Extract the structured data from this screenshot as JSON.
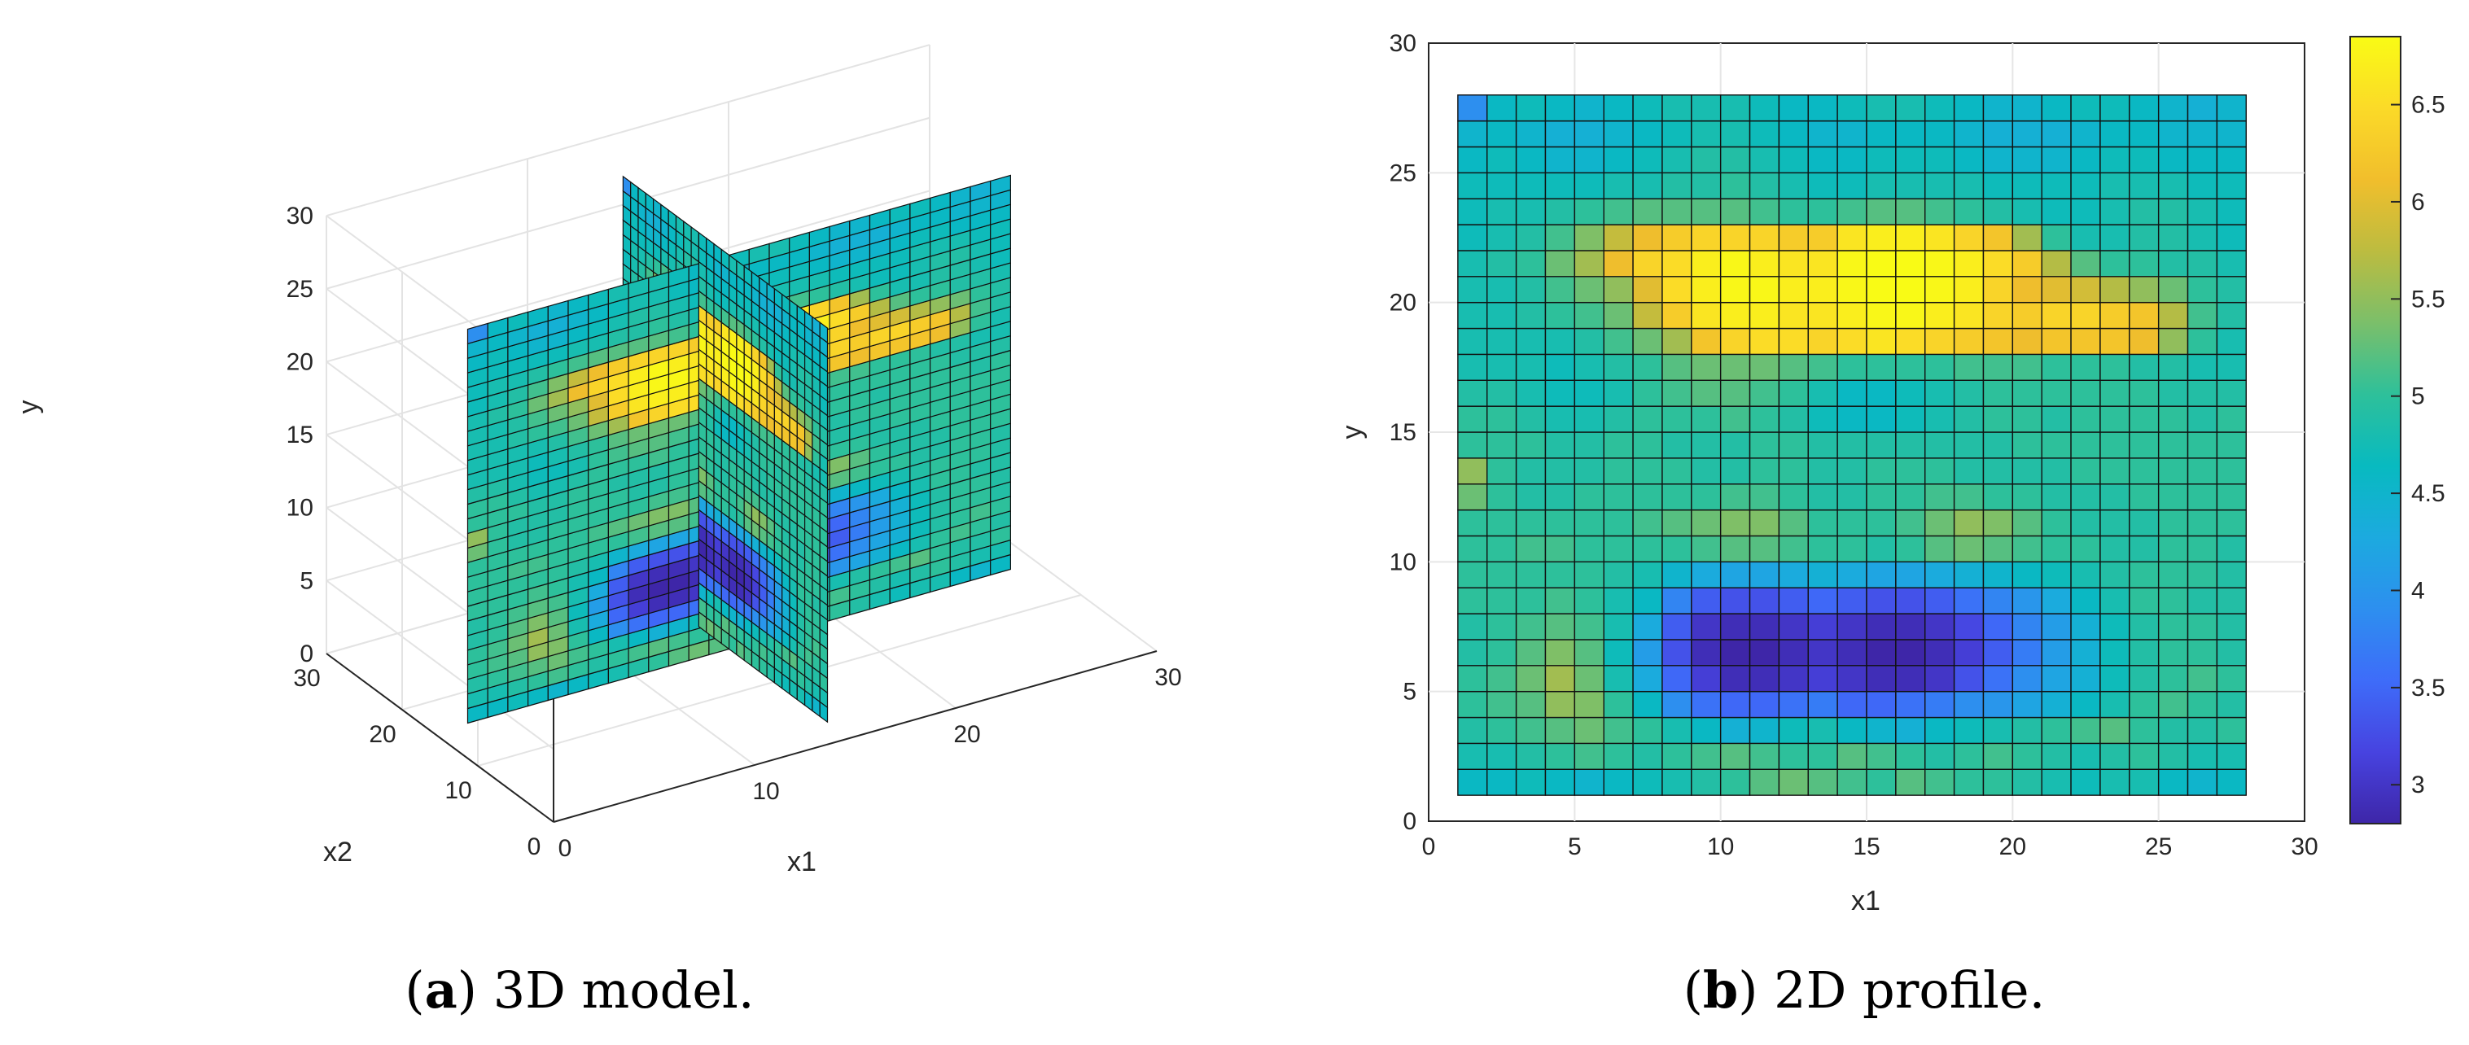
{
  "chart_data": [
    {
      "type": "3d-slice",
      "caption": {
        "label": "a",
        "text": "3D model."
      },
      "xlabel": "x1",
      "ylabel": "x2",
      "zlabel": "y",
      "xlim": [
        0,
        30
      ],
      "ylim": [
        0,
        30
      ],
      "zlim": [
        0,
        30
      ],
      "x_ticks": [
        "0",
        "10",
        "20",
        "30"
      ],
      "y_ticks": [
        "0",
        "10",
        "20",
        "30"
      ],
      "z_ticks": [
        "0",
        "5",
        "10",
        "15",
        "20",
        "25",
        "30"
      ],
      "slices": [
        {
          "plane": "x1 = 14",
          "range": [
            1,
            28
          ]
        },
        {
          "plane": "x2 = 14",
          "range": [
            1,
            28
          ]
        }
      ],
      "description_values": "Each slice shows a high-value band (~6.5) at y 19-24 and a low-value band (~3) at y 5-9 over a background of ~5."
    },
    {
      "type": "heatmap",
      "caption": {
        "label": "b",
        "text": "2D profile."
      },
      "xlabel": "x1",
      "ylabel": "y",
      "xlim": [
        0,
        30
      ],
      "ylim": [
        0,
        30
      ],
      "x_ticks": [
        "0",
        "5",
        "10",
        "15",
        "20",
        "25",
        "30"
      ],
      "y_ticks": [
        "0",
        "5",
        "10",
        "15",
        "20",
        "25",
        "30"
      ],
      "colorbar": {
        "min": 2.8,
        "max": 6.85,
        "ticks": [
          "3",
          "3.5",
          "4",
          "4.5",
          "5",
          "5.5",
          "6",
          "6.5"
        ]
      },
      "grid_x_start": 1,
      "grid_y_start": 1,
      "grid_size": 27,
      "values": [
        [
          4.6,
          4.6,
          4.7,
          4.6,
          4.5,
          4.6,
          4.7,
          4.8,
          4.9,
          5.0,
          5.2,
          5.3,
          5.2,
          5.1,
          5.0,
          5.2,
          5.1,
          5.0,
          5.0,
          4.9,
          4.8,
          4.7,
          4.8,
          4.8,
          4.6,
          4.5,
          4.6
        ],
        [
          4.8,
          4.8,
          4.9,
          5.0,
          5.1,
          5.0,
          4.9,
          5.0,
          5.1,
          5.2,
          5.1,
          5.0,
          5.0,
          5.2,
          5.1,
          5.0,
          4.9,
          5.0,
          5.1,
          5.0,
          4.9,
          4.8,
          4.9,
          5.0,
          4.9,
          4.8,
          4.8
        ],
        [
          4.9,
          5.0,
          5.1,
          5.2,
          5.3,
          5.1,
          5.0,
          4.8,
          4.6,
          4.4,
          4.5,
          4.7,
          4.8,
          4.6,
          4.5,
          4.4,
          4.6,
          4.7,
          4.8,
          4.9,
          5.0,
          5.1,
          5.2,
          5.0,
          4.9,
          4.9,
          5.0
        ],
        [
          5.0,
          5.1,
          5.2,
          5.5,
          5.4,
          5.0,
          4.6,
          3.9,
          3.6,
          3.5,
          3.5,
          3.6,
          3.7,
          3.5,
          3.5,
          3.6,
          3.7,
          3.9,
          4.0,
          4.2,
          4.4,
          4.6,
          4.8,
          5.0,
          5.1,
          5.0,
          4.9
        ],
        [
          5.0,
          5.1,
          5.3,
          5.6,
          5.3,
          4.8,
          4.3,
          3.5,
          3.1,
          2.9,
          2.9,
          3.0,
          3.1,
          3.0,
          2.9,
          2.9,
          3.0,
          3.3,
          3.6,
          3.9,
          4.2,
          4.4,
          4.7,
          4.9,
          5.0,
          5.1,
          5.0
        ],
        [
          4.9,
          5.0,
          5.2,
          5.4,
          5.2,
          4.7,
          4.1,
          3.3,
          2.9,
          2.8,
          2.8,
          2.9,
          3.0,
          2.9,
          2.8,
          2.8,
          2.9,
          3.1,
          3.4,
          3.7,
          4.1,
          4.4,
          4.7,
          4.9,
          5.0,
          5.0,
          4.9
        ],
        [
          4.9,
          5.0,
          5.1,
          5.2,
          5.1,
          4.8,
          4.3,
          3.4,
          3.0,
          2.9,
          2.9,
          3.0,
          3.1,
          3.0,
          2.9,
          2.9,
          3.0,
          3.2,
          3.5,
          3.8,
          4.1,
          4.4,
          4.7,
          4.9,
          5.0,
          5.0,
          4.9
        ],
        [
          5.0,
          5.0,
          5.0,
          5.1,
          5.0,
          4.8,
          4.6,
          3.8,
          3.4,
          3.3,
          3.3,
          3.4,
          3.5,
          3.4,
          3.3,
          3.3,
          3.4,
          3.6,
          3.8,
          4.0,
          4.3,
          4.6,
          4.8,
          5.0,
          5.0,
          4.9,
          4.9
        ],
        [
          5.0,
          5.0,
          5.0,
          5.0,
          5.0,
          4.9,
          4.8,
          4.5,
          4.3,
          4.2,
          4.2,
          4.3,
          4.4,
          4.3,
          4.2,
          4.2,
          4.3,
          4.4,
          4.5,
          4.6,
          4.7,
          4.8,
          4.9,
          5.0,
          5.0,
          5.0,
          4.9
        ],
        [
          5.0,
          5.0,
          5.1,
          5.1,
          5.0,
          5.0,
          5.0,
          5.0,
          5.1,
          5.2,
          5.2,
          5.1,
          5.0,
          5.0,
          4.9,
          5.0,
          5.2,
          5.3,
          5.2,
          5.1,
          5.0,
          5.0,
          4.9,
          4.9,
          5.0,
          5.0,
          4.9
        ],
        [
          5.0,
          5.0,
          5.0,
          5.0,
          5.0,
          5.0,
          5.1,
          5.2,
          5.3,
          5.4,
          5.4,
          5.2,
          5.0,
          5.0,
          5.0,
          5.1,
          5.3,
          5.5,
          5.4,
          5.2,
          5.0,
          4.9,
          4.9,
          4.9,
          5.0,
          5.0,
          5.0
        ],
        [
          5.3,
          5.0,
          4.9,
          4.9,
          5.0,
          5.0,
          5.0,
          5.0,
          5.0,
          5.1,
          5.1,
          5.0,
          4.9,
          4.9,
          5.0,
          5.0,
          5.1,
          5.1,
          5.0,
          5.0,
          4.9,
          4.9,
          4.9,
          5.0,
          5.0,
          5.0,
          5.0
        ],
        [
          5.5,
          5.0,
          4.9,
          4.9,
          4.9,
          5.0,
          5.0,
          5.0,
          4.9,
          4.9,
          5.0,
          5.0,
          4.9,
          4.9,
          5.0,
          5.0,
          5.0,
          4.9,
          4.9,
          4.9,
          4.9,
          5.0,
          5.0,
          5.0,
          5.0,
          5.0,
          5.0
        ],
        [
          5.0,
          5.0,
          5.0,
          4.9,
          4.9,
          5.0,
          5.0,
          4.9,
          4.9,
          4.9,
          5.0,
          5.0,
          4.9,
          4.9,
          4.9,
          4.9,
          4.9,
          4.9,
          4.9,
          5.0,
          5.0,
          5.0,
          5.0,
          5.0,
          5.0,
          5.0,
          5.0
        ],
        [
          5.0,
          5.0,
          4.9,
          4.8,
          4.8,
          4.9,
          5.0,
          5.0,
          5.0,
          5.1,
          5.0,
          4.9,
          4.7,
          4.6,
          4.6,
          4.7,
          4.8,
          4.9,
          5.0,
          5.0,
          4.9,
          5.0,
          5.0,
          5.0,
          5.0,
          4.9,
          5.0
        ],
        [
          4.9,
          4.9,
          4.8,
          4.7,
          4.7,
          4.8,
          5.0,
          5.1,
          5.2,
          5.2,
          5.1,
          5.0,
          4.8,
          4.6,
          4.6,
          4.7,
          4.8,
          4.9,
          5.0,
          5.0,
          5.0,
          5.0,
          5.0,
          5.0,
          4.9,
          4.9,
          4.9
        ],
        [
          4.8,
          4.8,
          4.8,
          4.7,
          4.8,
          4.9,
          5.0,
          5.2,
          5.3,
          5.3,
          5.3,
          5.2,
          5.1,
          5.0,
          5.0,
          5.0,
          5.0,
          5.1,
          5.1,
          5.1,
          5.0,
          5.0,
          5.0,
          4.9,
          4.9,
          4.8,
          4.8
        ],
        [
          4.8,
          4.8,
          4.8,
          4.8,
          4.9,
          5.1,
          5.3,
          5.6,
          6.2,
          6.4,
          6.5,
          6.5,
          6.4,
          6.5,
          6.6,
          6.5,
          6.4,
          6.3,
          6.2,
          6.1,
          6.2,
          6.2,
          6.2,
          6.1,
          5.5,
          5.0,
          4.8
        ],
        [
          4.8,
          4.8,
          4.9,
          5.0,
          5.1,
          5.3,
          5.8,
          6.3,
          6.6,
          6.7,
          6.7,
          6.6,
          6.6,
          6.7,
          6.8,
          6.8,
          6.7,
          6.6,
          6.4,
          6.3,
          6.4,
          6.4,
          6.3,
          6.2,
          5.7,
          5.1,
          4.9
        ],
        [
          4.8,
          4.8,
          4.9,
          5.1,
          5.3,
          5.5,
          6.0,
          6.5,
          6.7,
          6.8,
          6.8,
          6.7,
          6.7,
          6.8,
          6.85,
          6.85,
          6.8,
          6.7,
          6.4,
          6.1,
          6.0,
          5.9,
          5.7,
          5.5,
          5.3,
          5.0,
          4.9
        ],
        [
          4.8,
          4.9,
          5.0,
          5.3,
          5.6,
          6.1,
          6.4,
          6.5,
          6.7,
          6.8,
          6.7,
          6.6,
          6.6,
          6.8,
          6.85,
          6.85,
          6.8,
          6.7,
          6.5,
          6.3,
          5.7,
          5.2,
          5.0,
          5.0,
          4.9,
          4.9,
          4.8
        ],
        [
          4.7,
          4.8,
          4.9,
          5.1,
          5.4,
          5.8,
          6.1,
          6.3,
          6.4,
          6.4,
          6.4,
          6.3,
          6.3,
          6.6,
          6.7,
          6.7,
          6.6,
          6.4,
          6.2,
          5.6,
          5.0,
          4.8,
          4.8,
          4.9,
          4.9,
          4.8,
          4.7
        ],
        [
          4.7,
          4.8,
          4.8,
          4.9,
          5.0,
          5.1,
          5.2,
          5.2,
          5.2,
          5.2,
          5.1,
          5.0,
          5.0,
          5.1,
          5.2,
          5.2,
          5.1,
          5.0,
          4.9,
          4.8,
          4.7,
          4.7,
          4.8,
          4.9,
          4.9,
          4.8,
          4.7
        ],
        [
          4.7,
          4.7,
          4.7,
          4.7,
          4.7,
          4.8,
          4.8,
          4.9,
          4.9,
          5.0,
          4.9,
          4.8,
          4.7,
          4.7,
          4.8,
          4.8,
          4.8,
          4.8,
          4.7,
          4.7,
          4.7,
          4.7,
          4.8,
          4.8,
          4.8,
          4.7,
          4.7
        ],
        [
          4.6,
          4.7,
          4.6,
          4.5,
          4.5,
          4.6,
          4.7,
          4.8,
          4.9,
          4.9,
          4.8,
          4.7,
          4.6,
          4.6,
          4.7,
          4.7,
          4.7,
          4.6,
          4.5,
          4.5,
          4.5,
          4.6,
          4.7,
          4.7,
          4.6,
          4.6,
          4.6
        ],
        [
          4.5,
          4.6,
          4.5,
          4.4,
          4.4,
          4.5,
          4.6,
          4.7,
          4.8,
          4.8,
          4.7,
          4.6,
          4.5,
          4.5,
          4.6,
          4.6,
          4.6,
          4.5,
          4.4,
          4.4,
          4.4,
          4.5,
          4.6,
          4.6,
          4.5,
          4.5,
          4.5
        ],
        [
          3.9,
          4.6,
          4.7,
          4.6,
          4.5,
          4.6,
          4.7,
          4.8,
          4.8,
          4.8,
          4.7,
          4.6,
          4.6,
          4.7,
          4.8,
          4.8,
          4.7,
          4.6,
          4.5,
          4.5,
          4.6,
          4.7,
          4.7,
          4.6,
          4.5,
          4.4,
          4.5
        ]
      ]
    }
  ],
  "colormap": [
    "#3e26a8",
    "#4743e0",
    "#3e6cf9",
    "#2d8fef",
    "#1caadf",
    "#08bac0",
    "#2ec09a",
    "#7bbf6a",
    "#bcbc40",
    "#f1be2c",
    "#fbda28",
    "#f9fb15"
  ]
}
